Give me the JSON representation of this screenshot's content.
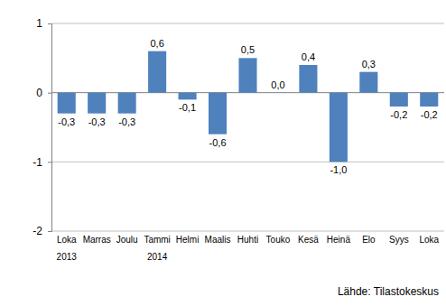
{
  "chart_data": {
    "type": "bar",
    "categories": [
      "Loka",
      "Marras",
      "Joulu",
      "Tammi",
      "Helmi",
      "Maalis",
      "Huhti",
      "Touko",
      "Kesä",
      "Heinä",
      "Elo",
      "Syys",
      "Loka"
    ],
    "category_sublabels": [
      "2013",
      null,
      null,
      "2014",
      null,
      null,
      null,
      null,
      null,
      null,
      null,
      null,
      null
    ],
    "values": [
      -0.3,
      -0.3,
      -0.3,
      0.6,
      -0.1,
      -0.6,
      0.5,
      0.0,
      0.4,
      -1.0,
      0.3,
      -0.2,
      -0.2
    ],
    "value_labels": [
      "-0,3",
      "-0,3",
      "-0,3",
      "0,6",
      "-0,1",
      "-0,6",
      "0,5",
      "0,0",
      "0,4",
      "-1,0",
      "0,3",
      "-0,2",
      "-0,2"
    ],
    "data_labels": true,
    "color": "#4f81bd",
    "ylim": [
      -2,
      1
    ],
    "yticks": [
      -2,
      -1,
      0,
      1
    ],
    "grid": true,
    "source": "Lähde: Tilastokeskus"
  }
}
